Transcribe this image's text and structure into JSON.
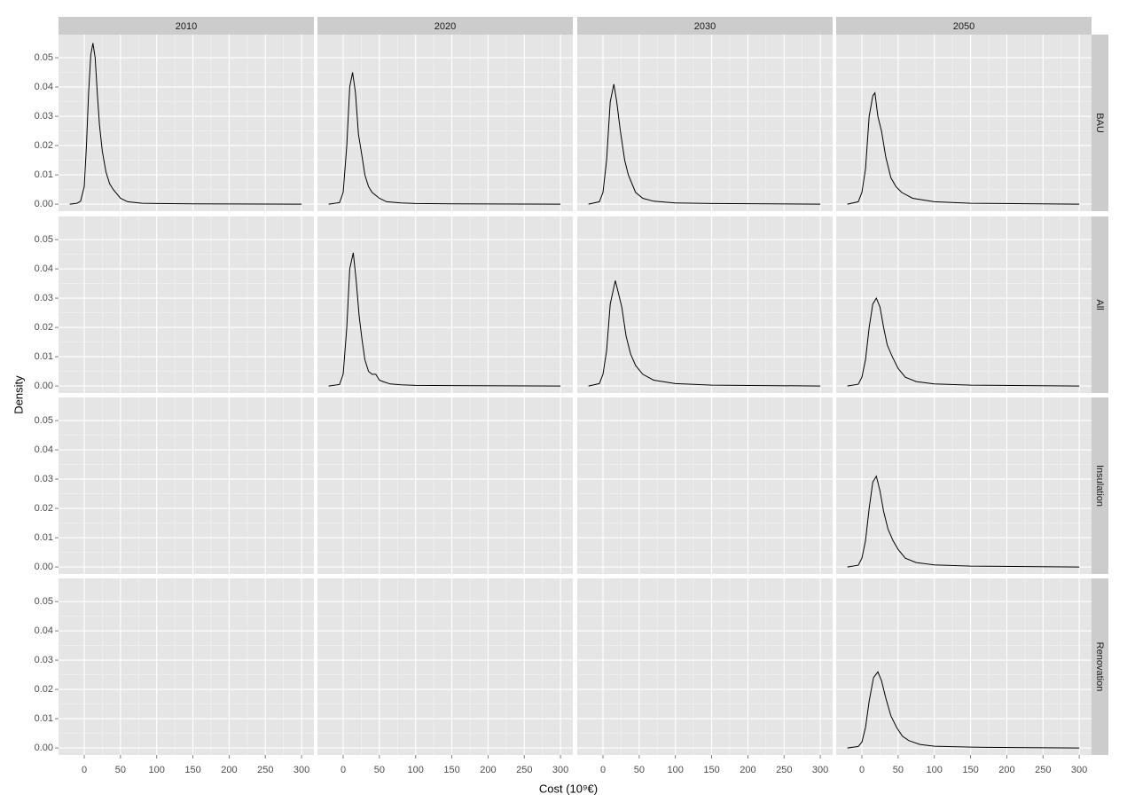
{
  "chart_data": {
    "type": "line",
    "x_label": "Cost (10⁹€)",
    "y_label": "Density",
    "columns": [
      "2010",
      "2020",
      "2030",
      "2050"
    ],
    "rows": [
      {
        "name": "BAU",
        "panels": [
          {
            "x": [
              -20,
              -10,
              -5,
              0,
              3,
              6,
              9,
              12,
              15,
              18,
              21,
              25,
              30,
              35,
              40,
              50,
              60,
              80,
              100,
              150,
              200,
              300
            ],
            "values": [
              0,
              0.0003,
              0.001,
              0.006,
              0.02,
              0.038,
              0.051,
              0.055,
              0.05,
              0.038,
              0.027,
              0.018,
              0.011,
              0.007,
              0.005,
              0.002,
              0.0008,
              0.0003,
              0.0002,
              0.0001,
              5e-05,
              0
            ]
          },
          {
            "x": [
              -20,
              -5,
              0,
              5,
              9,
              13,
              17,
              21,
              25,
              30,
              35,
              40,
              50,
              60,
              80,
              100,
              150,
              300
            ],
            "values": [
              0,
              0.0005,
              0.004,
              0.02,
              0.04,
              0.045,
              0.038,
              0.024,
              0.018,
              0.01,
              0.006,
              0.004,
              0.002,
              0.0008,
              0.0004,
              0.0002,
              0.0001,
              0
            ]
          },
          {
            "x": [
              -20,
              -5,
              0,
              5,
              10,
              15,
              19,
              24,
              30,
              35,
              40,
              45,
              55,
              70,
              100,
              150,
              300
            ],
            "values": [
              0,
              0.0008,
              0.004,
              0.015,
              0.035,
              0.041,
              0.035,
              0.025,
              0.015,
              0.01,
              0.007,
              0.004,
              0.002,
              0.001,
              0.0004,
              0.0002,
              0
            ]
          },
          {
            "x": [
              -20,
              -5,
              0,
              5,
              10,
              15,
              18,
              22,
              27,
              33,
              40,
              47,
              55,
              70,
              100,
              150,
              300
            ],
            "values": [
              0,
              0.0008,
              0.004,
              0.012,
              0.03,
              0.037,
              0.038,
              0.03,
              0.025,
              0.016,
              0.009,
              0.006,
              0.004,
              0.002,
              0.0008,
              0.0003,
              0
            ]
          }
        ]
      },
      {
        "name": "All",
        "panels": [
          null,
          {
            "x": [
              -20,
              -5,
              0,
              5,
              9,
              14,
              18,
              22,
              26,
              30,
              35,
              40,
              45,
              50,
              55,
              65,
              80,
              100,
              300
            ],
            "values": [
              0,
              0.0005,
              0.004,
              0.02,
              0.04,
              0.0455,
              0.036,
              0.024,
              0.016,
              0.009,
              0.005,
              0.004,
              0.004,
              0.002,
              0.0015,
              0.0007,
              0.0004,
              0.0002,
              0
            ]
          },
          {
            "x": [
              -20,
              -5,
              0,
              5,
              10,
              17,
              21,
              26,
              32,
              38,
              45,
              55,
              70,
              100,
              150,
              300
            ],
            "values": [
              0,
              0.0008,
              0.004,
              0.012,
              0.028,
              0.036,
              0.032,
              0.027,
              0.017,
              0.011,
              0.007,
              0.004,
              0.002,
              0.0008,
              0.0003,
              0
            ]
          },
          {
            "x": [
              -20,
              -5,
              0,
              5,
              10,
              15,
              20,
              25,
              30,
              35,
              42,
              50,
              60,
              75,
              100,
              150,
              300
            ],
            "values": [
              0,
              0.0006,
              0.003,
              0.009,
              0.02,
              0.028,
              0.03,
              0.027,
              0.02,
              0.014,
              0.01,
              0.006,
              0.003,
              0.0015,
              0.0007,
              0.0003,
              0
            ]
          }
        ]
      },
      {
        "name": "Insulation",
        "panels": [
          null,
          null,
          null,
          {
            "x": [
              -20,
              -5,
              0,
              5,
              10,
              15,
              20,
              25,
              30,
              36,
              43,
              50,
              60,
              75,
              100,
              150,
              300
            ],
            "values": [
              0,
              0.0006,
              0.003,
              0.009,
              0.02,
              0.029,
              0.031,
              0.026,
              0.019,
              0.013,
              0.009,
              0.006,
              0.003,
              0.0015,
              0.0007,
              0.0003,
              0
            ]
          }
        ]
      },
      {
        "name": "Renovation",
        "panels": [
          null,
          null,
          null,
          {
            "x": [
              -20,
              -5,
              0,
              5,
              10,
              16,
              22,
              27,
              33,
              40,
              48,
              56,
              65,
              80,
              100,
              150,
              170,
              300
            ],
            "values": [
              0,
              0.0005,
              0.002,
              0.007,
              0.016,
              0.024,
              0.026,
              0.023,
              0.017,
              0.011,
              0.007,
              0.004,
              0.0025,
              0.0012,
              0.0006,
              0.0003,
              0.0002,
              0
            ]
          }
        ]
      }
    ],
    "color": "#000000",
    "xlim": [
      -35.5,
      317
    ],
    "xticks": [
      0,
      50,
      100,
      150,
      200,
      250,
      300
    ],
    "ylim": [
      -0.0024,
      0.0579
    ],
    "yticks": [
      {
        "value": 0,
        "label": "0.00"
      },
      0.01,
      0.02,
      0.03,
      0.04,
      0.05
    ],
    "grid": true
  }
}
